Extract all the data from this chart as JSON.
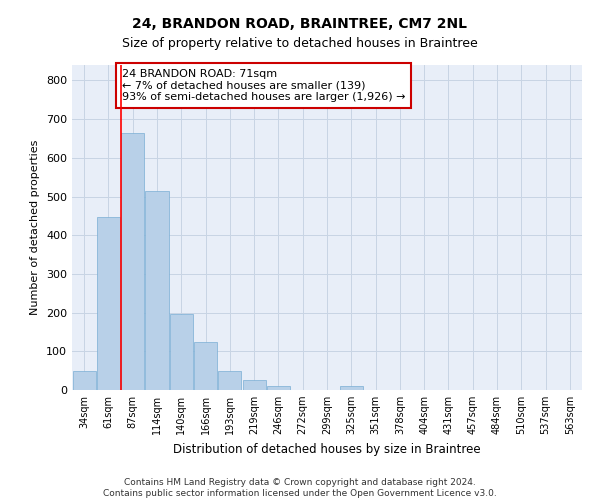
{
  "title": "24, BRANDON ROAD, BRAINTREE, CM7 2NL",
  "subtitle": "Size of property relative to detached houses in Braintree",
  "xlabel": "Distribution of detached houses by size in Braintree",
  "ylabel": "Number of detached properties",
  "categories": [
    "34sqm",
    "61sqm",
    "87sqm",
    "114sqm",
    "140sqm",
    "166sqm",
    "193sqm",
    "219sqm",
    "246sqm",
    "272sqm",
    "299sqm",
    "325sqm",
    "351sqm",
    "378sqm",
    "404sqm",
    "431sqm",
    "457sqm",
    "484sqm",
    "510sqm",
    "537sqm",
    "563sqm"
  ],
  "values": [
    50,
    448,
    665,
    515,
    197,
    125,
    50,
    25,
    10,
    0,
    0,
    10,
    0,
    0,
    0,
    0,
    0,
    0,
    0,
    0,
    0
  ],
  "bar_color": "#b8d0e8",
  "bar_edge_color": "#7aaed4",
  "grid_color": "#c8d4e4",
  "background_color": "#e8eef8",
  "property_line_x": 1.5,
  "annotation_text": "24 BRANDON ROAD: 71sqm\n← 7% of detached houses are smaller (139)\n93% of semi-detached houses are larger (1,926) →",
  "annotation_box_color": "#ffffff",
  "annotation_box_edge": "#cc0000",
  "footnote": "Contains HM Land Registry data © Crown copyright and database right 2024.\nContains public sector information licensed under the Open Government Licence v3.0.",
  "ylim": [
    0,
    840
  ],
  "yticks": [
    0,
    100,
    200,
    300,
    400,
    500,
    600,
    700,
    800
  ],
  "title_fontsize": 10,
  "subtitle_fontsize": 9
}
